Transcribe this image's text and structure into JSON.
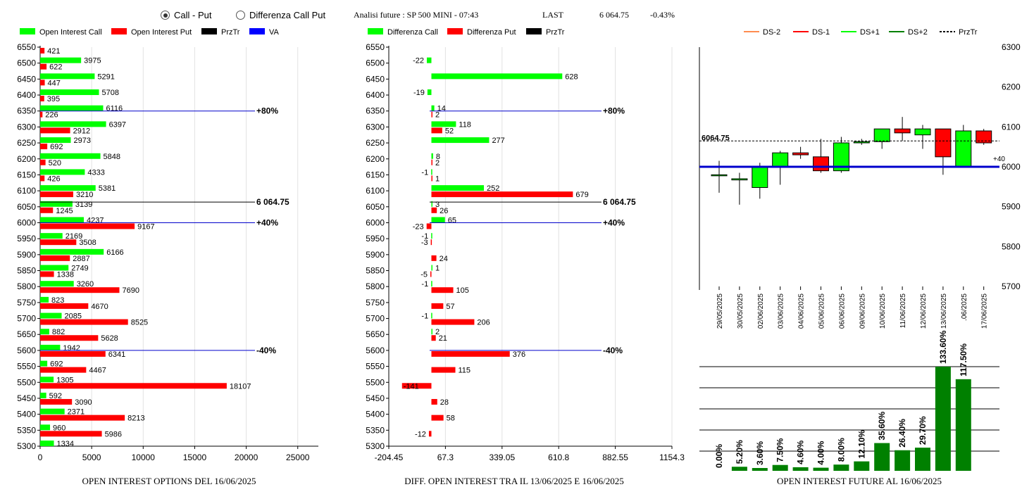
{
  "header": {
    "radio_call_put": "Call - Put",
    "radio_diff": "Differenza Call Put",
    "title": "Analisi future : SP 500 MINI - 07:43",
    "last_label": "LAST",
    "last_value": "6 064.75",
    "change": "-0.43%"
  },
  "chart_data": [
    {
      "type": "bar",
      "orientation": "horizontal",
      "caption": "OPEN INTEREST OPTIONS DEL 16/06/2025",
      "legend": [
        "Open Interest Call",
        "Open Interest Put",
        "PrzTr",
        "VA"
      ],
      "colors": {
        "call": "#00ff00",
        "put": "#ff0000",
        "prztr": "#000000",
        "va": "#0000ff"
      },
      "categories": [
        "6550",
        "6500",
        "6450",
        "6400",
        "6350",
        "6300",
        "6250",
        "6200",
        "6150",
        "6100",
        "6050",
        "6000",
        "5950",
        "5900",
        "5850",
        "5800",
        "5750",
        "5700",
        "5650",
        "5600",
        "5550",
        "5500",
        "5450",
        "5400",
        "5350",
        "5300"
      ],
      "series": [
        {
          "name": "Open Interest Call",
          "values": [
            null,
            3975,
            5291,
            5708,
            6116,
            6397,
            2973,
            5848,
            4333,
            5381,
            3139,
            4237,
            2169,
            6166,
            2749,
            3260,
            823,
            2085,
            882,
            1942,
            692,
            1305,
            592,
            2371,
            960,
            1334
          ]
        },
        {
          "name": "Open Interest Put",
          "values": [
            421,
            622,
            447,
            395,
            226,
            2912,
            692,
            520,
            426,
            3210,
            1245,
            9167,
            3508,
            2887,
            1338,
            7690,
            4670,
            8525,
            5628,
            6341,
            4467,
            18107,
            3090,
            8213,
            5986,
            null
          ]
        }
      ],
      "xticks": [
        0,
        5000,
        10000,
        15000,
        20000,
        25000
      ],
      "xlim": [
        0,
        27000
      ],
      "reference_lines": [
        {
          "label": "+80%",
          "level": 6350,
          "color": "#0000cc"
        },
        {
          "label": "6 064.75",
          "level": 6064.75,
          "color": "#000000"
        },
        {
          "label": "+40%",
          "level": 6000,
          "color": "#0000cc"
        },
        {
          "label": "-40%",
          "level": 5600,
          "color": "#0000cc"
        }
      ]
    },
    {
      "type": "bar",
      "orientation": "horizontal",
      "caption": "DIFF. OPEN INTEREST TRA IL 13/06/2025 E 16/06/2025",
      "legend": [
        "Differenza Call",
        "Differenza Put",
        "PrzTr"
      ],
      "colors": {
        "call": "#00ff00",
        "put": "#ff0000",
        "prztr": "#000000"
      },
      "categories": [
        "6550",
        "6500",
        "6450",
        "6400",
        "6350",
        "6300",
        "6250",
        "6200",
        "6150",
        "6100",
        "6050",
        "6000",
        "5950",
        "5900",
        "5850",
        "5800",
        "5750",
        "5700",
        "5650",
        "5600",
        "5550",
        "5500",
        "5450",
        "5400",
        "5350",
        "5300"
      ],
      "series": [
        {
          "name": "Differenza Call",
          "values": [
            null,
            -22,
            628,
            -19,
            14,
            118,
            277,
            8,
            -1,
            252,
            3,
            65,
            -1,
            null,
            1,
            -1,
            null,
            -1,
            2,
            null,
            null,
            null,
            null,
            null,
            null,
            null
          ]
        },
        {
          "name": "Differenza Put",
          "values": [
            null,
            null,
            null,
            null,
            2,
            52,
            null,
            2,
            1,
            679,
            26,
            -23,
            -3,
            24,
            -5,
            105,
            57,
            206,
            21,
            376,
            115,
            -141,
            28,
            58,
            -12,
            null
          ]
        }
      ],
      "xticks": [
        -204.45,
        67.3,
        339.05,
        610.8,
        882.55,
        1154.3
      ],
      "xlim": [
        -204.45,
        1154.3
      ],
      "reference_lines": [
        {
          "label": "+80%",
          "level": 6350,
          "color": "#0000cc"
        },
        {
          "label": "6 064.75",
          "level": 6064.75,
          "color": "#000000"
        },
        {
          "label": "+40%",
          "level": 6000,
          "color": "#0000cc"
        },
        {
          "label": "-40%",
          "level": 5600,
          "color": "#0000cc"
        }
      ]
    },
    {
      "type": "candlestick",
      "legend": [
        "DS-2",
        "DS-1",
        "DS+1",
        "DS+2",
        "PrzTr"
      ],
      "legend_colors": [
        "#ff8c50",
        "#ff0000",
        "#00ff00",
        "#008000",
        "#000000"
      ],
      "dates": [
        "29/05/2025",
        "30/05/2025",
        "02/06/2025",
        "03/06/2025",
        "04/06/2025",
        "05/06/2025",
        "06/06/2025",
        "09/06/2025",
        "10/06/2025",
        "11/06/2025",
        "12/06/2025",
        "13/06/2025",
        ".06/2025",
        "17/06/2025"
      ],
      "candles": [
        {
          "o": 5980,
          "h": 6015,
          "l": 5935,
          "c": 5980
        },
        {
          "o": 5967,
          "h": 5985,
          "l": 5905,
          "c": 5970
        },
        {
          "o": 5948,
          "h": 6010,
          "l": 5920,
          "c": 6000
        },
        {
          "o": 6000,
          "h": 6040,
          "l": 5955,
          "c": 6035
        },
        {
          "o": 6035,
          "h": 6050,
          "l": 6020,
          "c": 6030
        },
        {
          "o": 6025,
          "h": 6070,
          "l": 5985,
          "c": 5990
        },
        {
          "o": 5990,
          "h": 6075,
          "l": 5985,
          "c": 6060
        },
        {
          "o": 6060,
          "h": 6070,
          "l": 6055,
          "c": 6063
        },
        {
          "o": 6063,
          "h": 6095,
          "l": 6045,
          "c": 6095
        },
        {
          "o": 6095,
          "h": 6125,
          "l": 6065,
          "c": 6085
        },
        {
          "o": 6080,
          "h": 6105,
          "l": 6045,
          "c": 6095
        },
        {
          "o": 6095,
          "h": 6095,
          "l": 5980,
          "c": 6025
        },
        {
          "o": 6000,
          "h": 6105,
          "l": 6000,
          "c": 6090
        },
        {
          "o": 6090,
          "h": 6095,
          "l": 6055,
          "c": 6060
        }
      ],
      "yticks": [
        5700,
        5800,
        5900,
        6000,
        6100,
        6200,
        6300
      ],
      "ylim": [
        5700,
        6300
      ],
      "price_label": "6064.75",
      "price_level": 6064.75,
      "va_label": "+40",
      "va_level": 6000
    },
    {
      "type": "bar",
      "caption": "OPEN INTEREST FUTURE AL 16/06/2025",
      "categories": [
        "29/05/2025",
        "30/05/2025",
        "02/06/2025",
        "03/06/2025",
        "04/06/2025",
        "05/06/2025",
        "06/06/2025",
        "09/06/2025",
        "10/06/2025",
        "11/06/2025",
        "12/06/2025",
        "13/06/2025",
        ".06/2025",
        "17/06/2025"
      ],
      "values": [
        0.0,
        5.2,
        3.6,
        7.5,
        4.6,
        4.0,
        8.0,
        12.1,
        35.6,
        26.4,
        29.7,
        133.6,
        117.5,
        null
      ],
      "labels": [
        "0.00%",
        "5.20%",
        "3.60%",
        "7.50%",
        "4.60%",
        "4.00%",
        "8.00%",
        "12.10%",
        "35.60%",
        "26.40%",
        "29.70%",
        "133.60%",
        "117.50%"
      ],
      "color": "#008000"
    }
  ]
}
